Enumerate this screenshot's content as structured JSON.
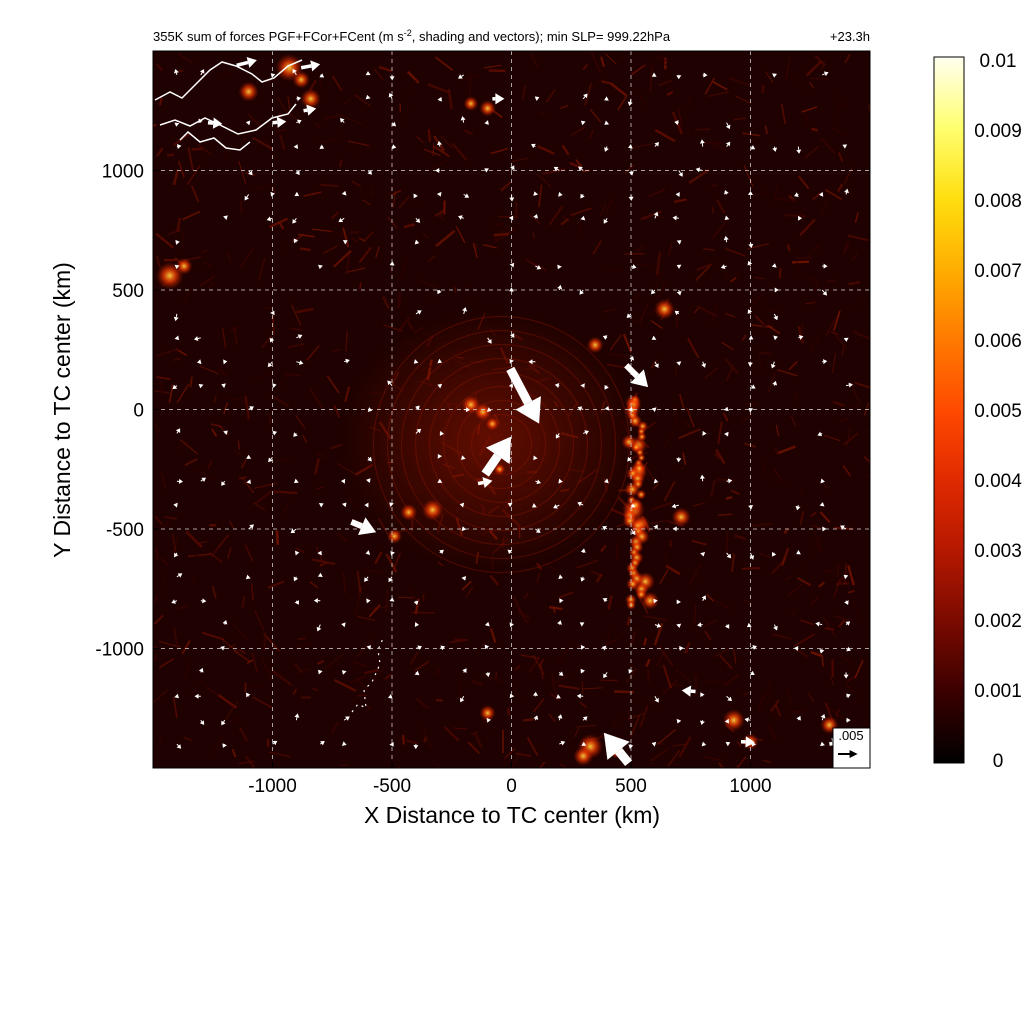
{
  "chart_data": {
    "type": "heatmap",
    "title": "355K sum of forces PGF+FCor+FCent (m s",
    "title_exponent": "-2",
    "title_rest": ", shading and vectors); min SLP= 999.22hPa",
    "time_label": "+23.3h",
    "xlabel": "X Distance to TC center (km)",
    "ylabel": "Y Distance to TC center (km)",
    "xlim": [
      -1500,
      1500
    ],
    "ylim": [
      -1500,
      1500
    ],
    "x_ticks": [
      -1000,
      -500,
      0,
      500,
      1000
    ],
    "y_ticks": [
      1000,
      500,
      0,
      -500,
      -1000
    ],
    "x_tick_labels": [
      "-1000",
      "-500",
      "0",
      "500",
      "1000"
    ],
    "y_tick_labels": [
      "1000",
      "500",
      "0",
      "-500",
      "-1000"
    ],
    "grid": true,
    "colorbar": {
      "min": 0,
      "max": 0.01,
      "labels": [
        "0.01",
        "0.009",
        "0.008",
        "0.007",
        "0.006",
        "0.005",
        "0.004",
        "0.003",
        "0.002",
        "0.001",
        "0"
      ],
      "colors": [
        "#000000",
        "#3a0000",
        "#7a0a00",
        "#b51800",
        "#e02a00",
        "#ff4a00",
        "#ff7a00",
        "#ffae00",
        "#ffdf10",
        "#ffff70",
        "#fffff0"
      ]
    },
    "reference_vector": {
      "label": ".005",
      "value": 0.005
    },
    "large_vectors": [
      {
        "x": -5,
        "y": 170,
        "u": 0.005,
        "v": -0.0095
      },
      {
        "x": -110,
        "y": -270,
        "u": 0.0045,
        "v": 0.0065
      },
      {
        "x": 480,
        "y": 185,
        "u": 0.0038,
        "v": -0.0038
      },
      {
        "x": 490,
        "y": -1480,
        "u": -0.0043,
        "v": 0.0053
      },
      {
        "x": -670,
        "y": -470,
        "u": 0.0043,
        "v": -0.0018
      },
      {
        "x": -1150,
        "y": 1440,
        "u": 0.0035,
        "v": 0.0009
      },
      {
        "x": -880,
        "y": 1430,
        "u": 0.0033,
        "v": 0.0006
      },
      {
        "x": -870,
        "y": 1250,
        "u": 0.0022,
        "v": 0.0004
      },
      {
        "x": -1000,
        "y": 1200,
        "u": 0.0024,
        "v": 0.0002
      },
      {
        "x": -1270,
        "y": 1200,
        "u": 0.0025,
        "v": -0.0002
      },
      {
        "x": -140,
        "y": -310,
        "u": 0.0025,
        "v": 0.0005
      },
      {
        "x": 770,
        "y": -1180,
        "u": -0.0024,
        "v": 0.0002
      },
      {
        "x": 960,
        "y": -1390,
        "u": 0.0024,
        "v": -0.0001
      },
      {
        "x": 1330,
        "y": -1400,
        "u": 0.0021,
        "v": 0.0004
      },
      {
        "x": -80,
        "y": 1300,
        "u": 0.0021,
        "v": 0.0
      }
    ]
  }
}
